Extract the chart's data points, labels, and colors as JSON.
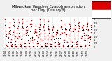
{
  "title": "Milwaukee Weather Evapotranspiration\nper Day (Ozs sq/ft)",
  "title_fontsize": 3.8,
  "background_color": "#f0f0f0",
  "plot_bg_color": "#ffffff",
  "grid_color": "#bbbbbb",
  "dot_color_red": "#ff0000",
  "dot_color_black": "#000000",
  "legend_top_color": "#dd0000",
  "legend_bottom_color": "#ffffff",
  "y_ticks": [
    0.0,
    0.05,
    0.1,
    0.15,
    0.2,
    0.25,
    0.3,
    0.35,
    0.4
  ],
  "y_tick_labels": [
    "0",
    ".05",
    ".1",
    ".15",
    ".2",
    ".25",
    ".3",
    ".35",
    ".4"
  ],
  "ylim": [
    -0.01,
    0.43
  ],
  "n_years": 20,
  "seed": 7
}
